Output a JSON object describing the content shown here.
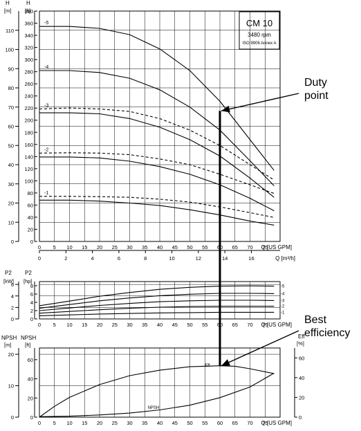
{
  "chart_data": [
    {
      "type": "line",
      "panel": "head",
      "title": "CM 10",
      "info": [
        "3480 rpm",
        "ISO 9906 Annex A"
      ],
      "xlabel": "Q [US GPM]",
      "xlim": [
        0,
        80
      ],
      "xticks": [
        0,
        5,
        10,
        15,
        20,
        25,
        30,
        35,
        40,
        45,
        50,
        55,
        60,
        65,
        70,
        75
      ],
      "ylabel_left": "H\n[m]",
      "ylim_left": [
        0,
        120
      ],
      "yticks_left": [
        0,
        10,
        20,
        30,
        40,
        50,
        60,
        70,
        80,
        90,
        100,
        110
      ],
      "ylabel_right": "H\n[ft]",
      "ylim_right": [
        0,
        380
      ],
      "yticks_right": [
        0,
        20,
        40,
        60,
        80,
        100,
        120,
        140,
        160,
        180,
        200,
        220,
        240,
        260,
        280,
        300,
        320,
        340,
        360,
        380
      ],
      "second_xaxis": {
        "label": "Q [m³/h]",
        "lim": [
          0,
          18
        ],
        "ticks": [
          0,
          2,
          4,
          6,
          8,
          10,
          12,
          14,
          16
        ]
      },
      "grid": true,
      "series": [
        {
          "name": "-5",
          "style": "solid",
          "x": [
            0,
            10,
            20,
            30,
            40,
            50,
            60,
            70,
            78
          ],
          "y": [
            112,
            112,
            111,
            107.7,
            100.3,
            89,
            73,
            53,
            37
          ]
        },
        {
          "name": "-4",
          "style": "solid",
          "x": [
            0,
            10,
            20,
            30,
            40,
            50,
            60,
            70,
            78
          ],
          "y": [
            89,
            89,
            88,
            85,
            79,
            70,
            58,
            42,
            29
          ]
        },
        {
          "name": "-3",
          "style": "dashed",
          "x": [
            0,
            10,
            20,
            30,
            40,
            50,
            60,
            70,
            78
          ],
          "y": [
            69,
            69.5,
            69,
            67.7,
            64,
            58,
            50,
            40,
            32
          ]
        },
        {
          "name": "-3",
          "style": "solid",
          "x": [
            0,
            10,
            20,
            30,
            40,
            50,
            60,
            70,
            78
          ],
          "y": [
            67,
            67,
            66.5,
            64,
            59.5,
            53,
            44.5,
            33,
            23
          ]
        },
        {
          "name": "-2",
          "style": "dashed",
          "x": [
            0,
            10,
            20,
            30,
            40,
            50,
            60,
            70,
            78
          ],
          "y": [
            46,
            46.2,
            46,
            45.2,
            43,
            40,
            35,
            29.5,
            25
          ]
        },
        {
          "name": "-2",
          "style": "solid",
          "x": [
            0,
            10,
            20,
            30,
            40,
            50,
            60,
            70,
            78
          ],
          "y": [
            44,
            44,
            43.5,
            41.8,
            39,
            35,
            29.5,
            22.5,
            16
          ]
        },
        {
          "name": "-1",
          "style": "dashed",
          "x": [
            0,
            10,
            20,
            30,
            40,
            50,
            60,
            70,
            78
          ],
          "y": [
            23.5,
            23.5,
            23.3,
            23,
            22,
            20.5,
            18,
            15,
            12.5
          ]
        },
        {
          "name": "-1",
          "style": "solid",
          "x": [
            0,
            10,
            20,
            30,
            40,
            50,
            60,
            70,
            78
          ],
          "y": [
            21.5,
            21.5,
            21,
            20,
            18.7,
            16.5,
            13.8,
            10.6,
            8.5
          ]
        }
      ],
      "annotations": [
        {
          "text": "Duty point",
          "x": 60,
          "y": 68
        }
      ]
    },
    {
      "type": "line",
      "panel": "power",
      "xlabel": "Q [US GPM]",
      "xlim": [
        0,
        80
      ],
      "xticks": [
        0,
        5,
        10,
        15,
        20,
        25,
        30,
        35,
        40,
        45,
        50,
        55,
        60,
        65,
        70,
        75
      ],
      "ylabel_left": "P2\n[kW]",
      "ylim_left": [
        0,
        6.5
      ],
      "yticks_left": [
        0,
        2,
        4,
        6
      ],
      "ylabel_right": "P2\n[hp]",
      "ylim_right": [
        0,
        9
      ],
      "yticks_right": [
        0,
        2,
        4,
        6,
        8
      ],
      "grid": true,
      "series": [
        {
          "name": "-5",
          "x": [
            0,
            10,
            20,
            30,
            40,
            50,
            60,
            70,
            78
          ],
          "y": [
            2.3,
            3.1,
            3.95,
            4.6,
            5.15,
            5.5,
            5.7,
            5.75,
            5.7
          ]
        },
        {
          "name": "-4",
          "x": [
            0,
            10,
            20,
            30,
            40,
            50,
            60,
            70,
            78
          ],
          "y": [
            1.85,
            2.5,
            3.15,
            3.65,
            4.05,
            4.3,
            4.45,
            4.45,
            4.4
          ]
        },
        {
          "name": "-3",
          "x": [
            0,
            10,
            20,
            30,
            40,
            50,
            60,
            70,
            78
          ],
          "y": [
            1.45,
            1.9,
            2.35,
            2.7,
            3.0,
            3.15,
            3.25,
            3.25,
            3.2
          ]
        },
        {
          "name": "-2",
          "x": [
            0,
            10,
            20,
            30,
            40,
            50,
            60,
            70,
            78
          ],
          "y": [
            1.0,
            1.3,
            1.6,
            1.85,
            2.05,
            2.15,
            2.2,
            2.2,
            2.2
          ]
        },
        {
          "name": "-1",
          "x": [
            0,
            10,
            20,
            30,
            40,
            50,
            60,
            70,
            78
          ],
          "y": [
            0.55,
            0.7,
            0.85,
            0.95,
            1.05,
            1.1,
            1.15,
            1.15,
            1.15
          ]
        }
      ]
    },
    {
      "type": "line",
      "panel": "npsh-efficiency",
      "xlabel": "Q [US GPM]",
      "xlim": [
        0,
        80
      ],
      "xticks": [
        0,
        5,
        10,
        15,
        20,
        25,
        30,
        35,
        40,
        45,
        50,
        55,
        60,
        65,
        70,
        75
      ],
      "ylabel_left": "NPSH\n[m]",
      "ylim_left": [
        0,
        22
      ],
      "yticks_left": [
        0,
        10,
        20
      ],
      "ylabel_right_inner": "NPSH\n[ft]",
      "yticks_right_inner": [
        0,
        20,
        40,
        60
      ],
      "ylabel_far_right": "Eff\n[%]",
      "ylim_far_right": [
        0,
        70
      ],
      "yticks_far_right": [
        0,
        20,
        40,
        60
      ],
      "grid": true,
      "series": [
        {
          "name": "Eff",
          "x": [
            0,
            5,
            10,
            20,
            30,
            40,
            50,
            60,
            65,
            70,
            78
          ],
          "y": [
            0,
            11,
            20,
            33,
            42,
            47.5,
            51,
            52,
            51.5,
            49,
            44
          ]
        },
        {
          "name": "NPSH",
          "x": [
            0,
            10,
            20,
            30,
            40,
            50,
            60,
            70,
            78
          ],
          "y": [
            0.15,
            0.3,
            0.7,
            1.3,
            2.3,
            3.8,
            6.2,
            9.6,
            14
          ]
        }
      ],
      "annotations": [
        {
          "text": "Best efficiency",
          "x": 60,
          "y": 52
        }
      ]
    }
  ],
  "labels": {
    "duty_point_1": "Duty",
    "duty_point_2": "point",
    "best_eff_1": "Best",
    "best_eff_2": "efficiency"
  },
  "colors": {
    "ink": "#000000",
    "background": "#ffffff"
  }
}
